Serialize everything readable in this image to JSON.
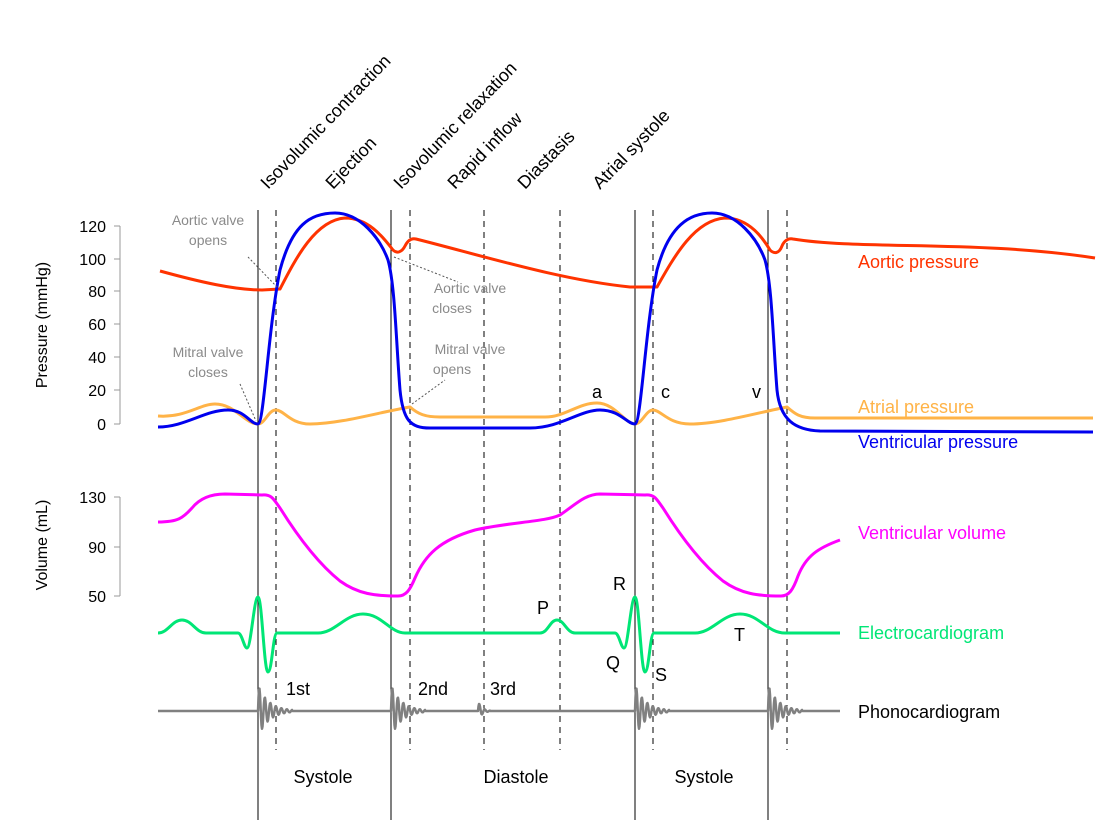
{
  "phases": [
    "Isovolumic contraction",
    "Ejection",
    "Isovolumic relaxation",
    "Rapid inflow",
    "Diastasis",
    "Atrial systole"
  ],
  "pressure_axis": {
    "label": "Pressure (mmHg)",
    "ticks": [
      "120",
      "100",
      "80",
      "60",
      "40",
      "20",
      "0"
    ]
  },
  "volume_axis": {
    "label": "Volume (mL)",
    "ticks": [
      "130",
      "90",
      "50"
    ]
  },
  "legend": {
    "aortic": "Aortic pressure",
    "atrial": "Atrial pressure",
    "ventricular": "Ventricular pressure",
    "volume": "Ventricular volume",
    "ecg": "Electrocardiogram",
    "phono": "Phonocardiogram"
  },
  "notes": {
    "aortic_opens": [
      "Aortic valve",
      "opens"
    ],
    "mitral_closes": [
      "Mitral valve",
      "closes"
    ],
    "aortic_closes": [
      "Aortic valve",
      "closes"
    ],
    "mitral_opens": [
      "Mitral valve",
      "opens"
    ]
  },
  "waves": {
    "a": "a",
    "c": "c",
    "v": "v",
    "P": "P",
    "Q": "Q",
    "R": "R",
    "S": "S",
    "T": "T"
  },
  "sounds": [
    "1st",
    "2nd",
    "3rd"
  ],
  "cycle": [
    "Systole",
    "Diastole",
    "Systole"
  ],
  "colors": {
    "aortic": "#ff3300",
    "atrial": "#ffb347",
    "ventricular": "#0000ee",
    "volume": "#ff00ff",
    "ecg": "#00e676",
    "phono": "#808080",
    "note": "#8a8a8a"
  }
}
